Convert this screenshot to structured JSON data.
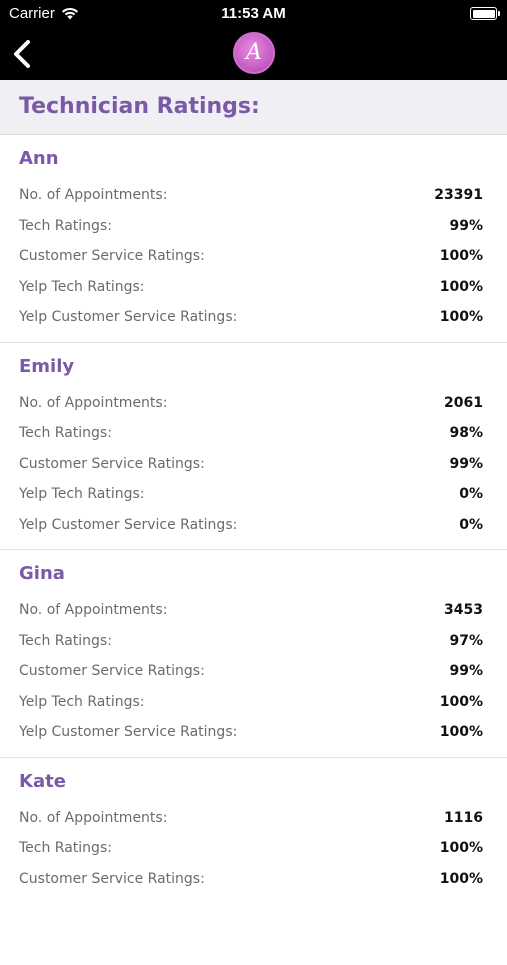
{
  "status_bar": {
    "carrier": "Carrier",
    "time": "11:53 AM"
  },
  "nav": {
    "logo_letter": "A"
  },
  "header": {
    "title": "Technician Ratings:"
  },
  "labels": {
    "appointments": "No. of Appointments:",
    "tech": "Tech Ratings:",
    "customer_service": "Customer Service Ratings:",
    "yelp_tech": "Yelp Tech Ratings:",
    "yelp_customer_service": "Yelp Customer Service Ratings:"
  },
  "technicians": [
    {
      "name": "Ann",
      "appointments": "23391",
      "tech": "99%",
      "customer_service": "100%",
      "yelp_tech": "100%",
      "yelp_customer_service": "100%"
    },
    {
      "name": "Emily",
      "appointments": "2061",
      "tech": "98%",
      "customer_service": "99%",
      "yelp_tech": "0%",
      "yelp_customer_service": "0%"
    },
    {
      "name": "Gina",
      "appointments": "3453",
      "tech": "97%",
      "customer_service": "99%",
      "yelp_tech": "100%",
      "yelp_customer_service": "100%"
    },
    {
      "name": "Kate",
      "appointments": "1116",
      "tech": "100%",
      "customer_service": "100%"
    }
  ],
  "colors": {
    "accent": "#7a5aa6",
    "header_bg": "#f0eff4"
  }
}
